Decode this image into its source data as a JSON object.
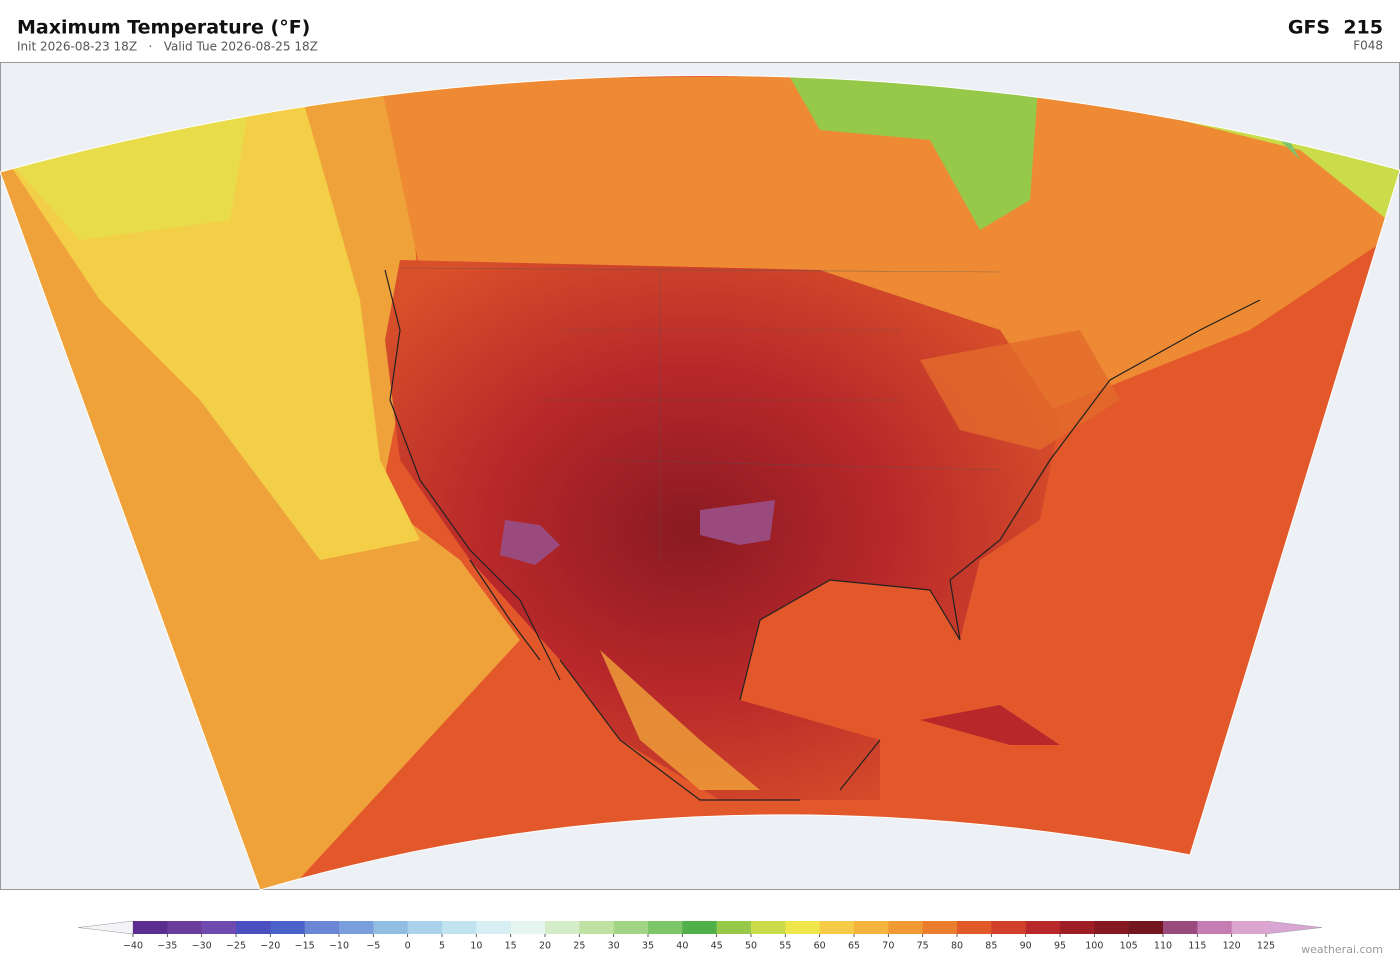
{
  "header": {
    "title": "Maximum Temperature  (°F)",
    "subtitle": "Init 2026-08-23 18Z   ·   Valid Tue 2026-08-25 18Z",
    "model": "GFS  215",
    "forecast_hour": "F048"
  },
  "colorbar": {
    "ticks": [
      {
        "value": -40,
        "label": "−40"
      },
      {
        "value": -35,
        "label": "−35"
      },
      {
        "value": -30,
        "label": "−30"
      },
      {
        "value": -25,
        "label": "−25"
      },
      {
        "value": -20,
        "label": "−20"
      },
      {
        "value": -15,
        "label": "−15"
      },
      {
        "value": -10,
        "label": "−10"
      },
      {
        "value": -5,
        "label": "−5"
      },
      0,
      5,
      10,
      15,
      20,
      25,
      30,
      35,
      40,
      45,
      50,
      55,
      60,
      65,
      70,
      75,
      80,
      85,
      90,
      95,
      100,
      105,
      110,
      115,
      120,
      125
    ],
    "colors": [
      "#5b2d8e",
      "#6a3d9a",
      "#6f4bb0",
      "#4b4fbf",
      "#4a62c8",
      "#6b86d4",
      "#7a9edb",
      "#92bde3",
      "#a9d2ea",
      "#c1e3f0",
      "#d7eef3",
      "#e5f4ef",
      "#d5ecc9",
      "#bfe2a3",
      "#a1d585",
      "#7cc568",
      "#52b04a",
      "#96c84a",
      "#cbdc4a",
      "#eee64a",
      "#f5cb47",
      "#f5b43d",
      "#f09a36",
      "#ea7d2e",
      "#e05a28",
      "#d0402a",
      "#b8282a",
      "#9e1e25",
      "#851721",
      "#74161f",
      "#9b4a7e",
      "#c47cb2",
      "#dba5d0"
    ],
    "under_color": "#f4f4f8",
    "over_color": "#d9a6d4"
  },
  "watermark": "weatherai.com"
}
